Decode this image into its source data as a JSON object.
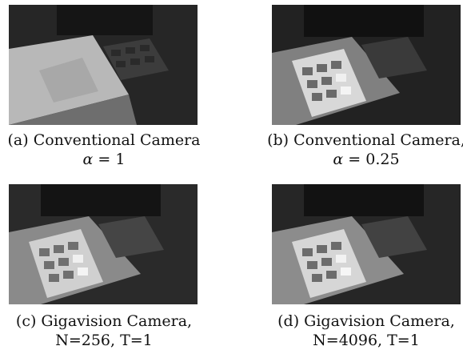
{
  "figure": {
    "panels": [
      {
        "id": "a",
        "caption_line1": "(a) Conventional Camera",
        "caption_line2_symbol": "α",
        "caption_line2_rest": " = 1",
        "caption_line2": ""
      },
      {
        "id": "b",
        "caption_line1": "(b) Conventional Camera,",
        "caption_line2_symbol": "α",
        "caption_line2_rest": " = 0.25",
        "caption_line2": ""
      },
      {
        "id": "c",
        "caption_line1": "(c) Gigavision Camera,",
        "caption_line2_symbol": "",
        "caption_line2_rest": "",
        "caption_line2": "N=256, T=1"
      },
      {
        "id": "d",
        "caption_line1": "(d) Gigavision Camera,",
        "caption_line2_symbol": "",
        "caption_line2_rest": "",
        "caption_line2": "N=4096, T=1"
      }
    ]
  }
}
